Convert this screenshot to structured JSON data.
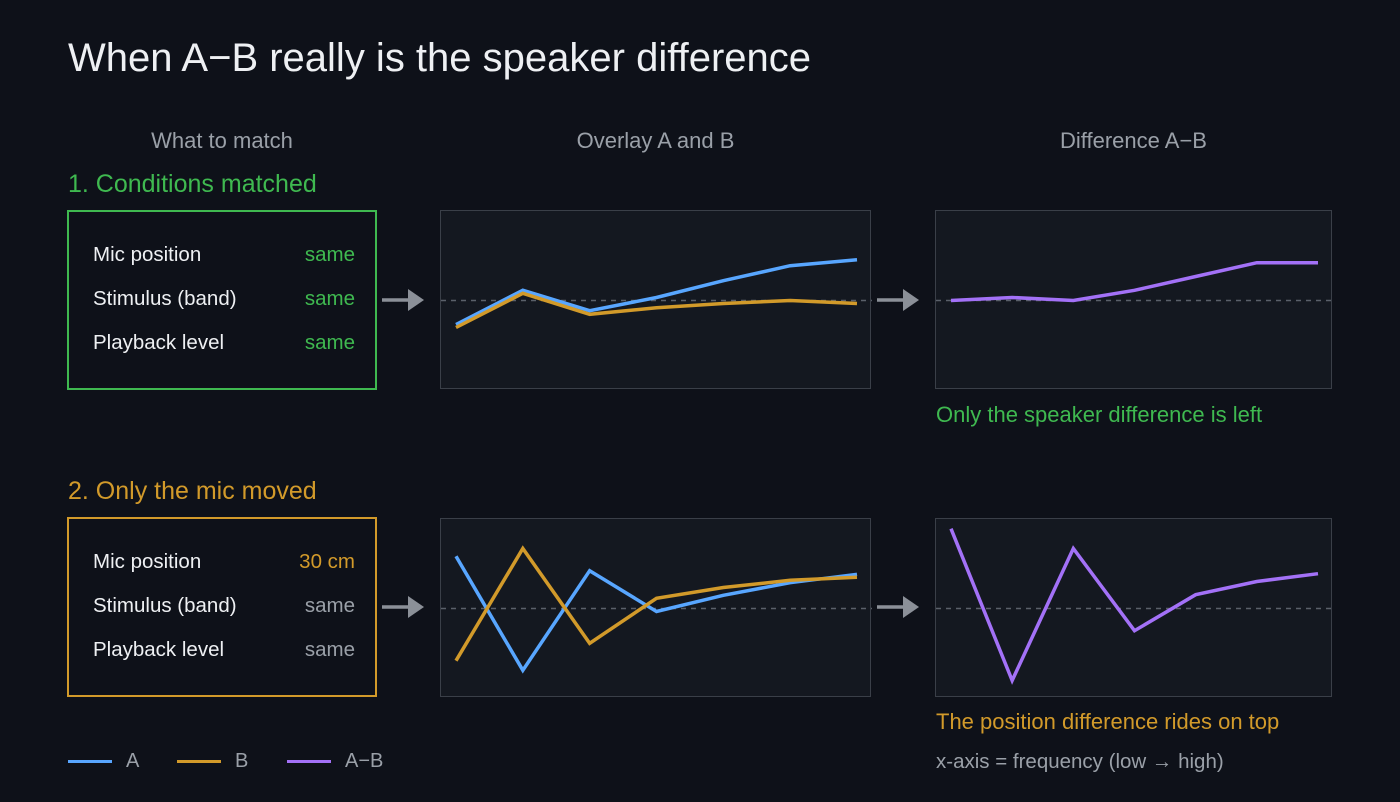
{
  "title": "When A−B really is the speaker difference",
  "column_headers": [
    "What to match",
    "Overlay A and B",
    "Difference A−B"
  ],
  "colors": {
    "a": "#58a6ff",
    "b": "#d29a2a",
    "diff": "#a371f7",
    "matched": "#3fb950",
    "moved": "#d29a2a",
    "neutral": "#9aa0a8"
  },
  "rows": [
    {
      "heading": "1. Conditions matched",
      "conditions": [
        {
          "label": "Mic position",
          "value": "same",
          "state": "matched"
        },
        {
          "label": "Stimulus (band)",
          "value": "same",
          "state": "matched"
        },
        {
          "label": "Playback level",
          "value": "same",
          "state": "matched"
        }
      ],
      "caption": "Only the speaker difference is left"
    },
    {
      "heading": "2. Only the mic moved",
      "conditions": [
        {
          "label": "Mic position",
          "value": "30 cm",
          "state": "moved"
        },
        {
          "label": "Stimulus (band)",
          "value": "same",
          "state": "neutral"
        },
        {
          "label": "Playback level",
          "value": "same",
          "state": "neutral"
        }
      ],
      "caption": "The position difference rides on top"
    }
  ],
  "legend": [
    {
      "label": "A",
      "series": "a",
      "icon": "line-swatch"
    },
    {
      "label": "B",
      "series": "b",
      "icon": "line-swatch"
    },
    {
      "label": "A−B",
      "series": "diff",
      "icon": "line-swatch"
    }
  ],
  "axis_note": "x-axis = frequency (low → high)",
  "icons": {
    "arrow": "arrow-right-icon"
  },
  "chart_data": [
    {
      "type": "line",
      "x": [
        1,
        2,
        3,
        4,
        5,
        6,
        7
      ],
      "ylim": [
        -1.5,
        1.5
      ],
      "series": [
        {
          "key": "a",
          "name": "A",
          "values": [
            -0.4,
            0.17,
            -0.17,
            0.05,
            0.33,
            0.58,
            0.68
          ]
        },
        {
          "key": "b",
          "name": "B",
          "values": [
            -0.45,
            0.12,
            -0.23,
            -0.12,
            -0.05,
            0.0,
            -0.05
          ]
        }
      ]
    },
    {
      "type": "line",
      "x": [
        1,
        2,
        3,
        4,
        5,
        6,
        7
      ],
      "ylim": [
        -1.5,
        1.5
      ],
      "series": [
        {
          "key": "diff",
          "name": "A−B",
          "values": [
            0.0,
            0.05,
            0.0,
            0.17,
            0.4,
            0.63,
            0.63
          ]
        }
      ]
    },
    {
      "type": "line",
      "x": [
        1,
        2,
        3,
        4,
        5,
        6,
        7
      ],
      "ylim": [
        -1.5,
        1.5
      ],
      "series": [
        {
          "key": "a",
          "name": "A",
          "values": [
            0.87,
            -1.03,
            0.63,
            -0.05,
            0.22,
            0.43,
            0.57
          ]
        },
        {
          "key": "b",
          "name": "B",
          "values": [
            -0.87,
            1.0,
            -0.58,
            0.17,
            0.35,
            0.47,
            0.52
          ]
        }
      ]
    },
    {
      "type": "line",
      "x": [
        1,
        2,
        3,
        4,
        5,
        6,
        7
      ],
      "ylim": [
        -1.5,
        1.5
      ],
      "series": [
        {
          "key": "diff",
          "name": "A−B",
          "values": [
            1.33,
            -1.2,
            1.0,
            -0.37,
            0.23,
            0.45,
            0.58
          ]
        }
      ]
    }
  ]
}
